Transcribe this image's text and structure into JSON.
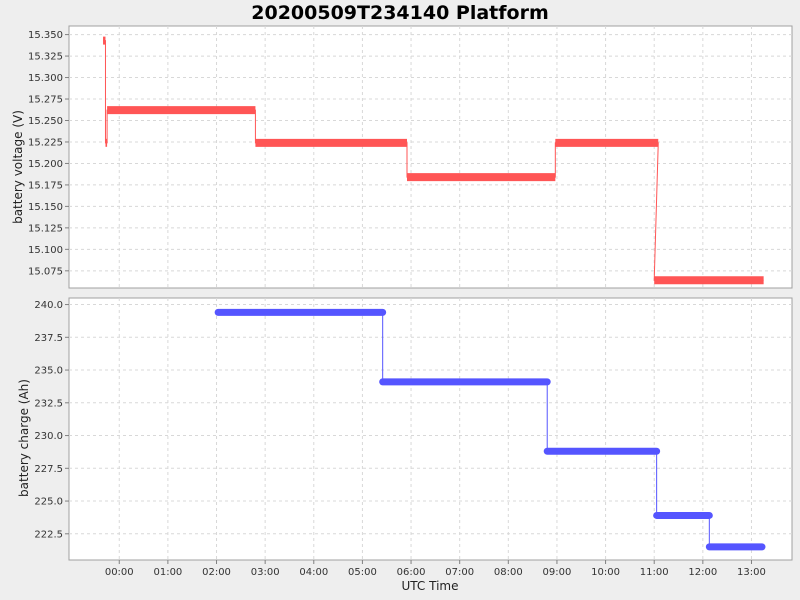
{
  "chart_data": [
    {
      "type": "line",
      "title": "20200509T234140 Platform",
      "xlabel": "UTC Time",
      "ylabel": "battery voltage (V)",
      "ylim": [
        15.055,
        15.36
      ],
      "y_ticks": [
        15.075,
        15.1,
        15.125,
        15.15,
        15.175,
        15.2,
        15.225,
        15.25,
        15.275,
        15.3,
        15.325,
        15.35
      ],
      "y_tick_labels": [
        "15.075",
        "15.100",
        "15.125",
        "15.150",
        "15.175",
        "15.200",
        "15.225",
        "15.250",
        "15.275",
        "15.300",
        "15.325",
        "15.350"
      ],
      "grid": true,
      "color": "#ff5555",
      "series": [
        {
          "segments": [
            {
              "x": [
                "23:40",
                "23:43"
              ],
              "y": [
                15.343,
                15.343
              ]
            },
            {
              "x": [
                "23:43",
                "23:45"
              ],
              "y": [
                15.224,
                15.224
              ]
            },
            {
              "x": [
                "23:45",
                "02:48"
              ],
              "y": [
                15.262,
                15.262
              ]
            },
            {
              "x": [
                "02:48",
                "05:55"
              ],
              "y": [
                15.224,
                15.224
              ]
            },
            {
              "x": [
                "05:55",
                "08:58"
              ],
              "y": [
                15.184,
                15.184
              ]
            },
            {
              "x": [
                "08:58",
                "11:05"
              ],
              "y": [
                15.224,
                15.224
              ]
            },
            {
              "x": [
                "11:00",
                "13:15"
              ],
              "y": [
                15.064,
                15.064
              ]
            }
          ]
        }
      ]
    },
    {
      "type": "line",
      "xlabel": "UTC Time",
      "ylabel": "battery charge (Ah)",
      "ylim": [
        220.5,
        240.5
      ],
      "y_ticks": [
        222.5,
        225.0,
        227.5,
        230.0,
        232.5,
        235.0,
        237.5,
        240.0
      ],
      "y_tick_labels": [
        "222.5",
        "225.0",
        "227.5",
        "230.0",
        "232.5",
        "235.0",
        "237.5",
        "240.0"
      ],
      "grid": true,
      "color": "#5555ff",
      "series": [
        {
          "segments": [
            {
              "x": [
                "02:02",
                "05:25"
              ],
              "y": [
                239.4,
                239.4
              ]
            },
            {
              "x": [
                "05:25",
                "08:48"
              ],
              "y": [
                234.1,
                234.1
              ]
            },
            {
              "x": [
                "08:48",
                "11:03"
              ],
              "y": [
                228.8,
                228.8
              ]
            },
            {
              "x": [
                "11:03",
                "12:08"
              ],
              "y": [
                223.9,
                223.9
              ]
            },
            {
              "x": [
                "12:08",
                "13:13"
              ],
              "y": [
                221.5,
                221.5
              ]
            }
          ]
        }
      ]
    }
  ],
  "x_axis": {
    "ticks": [
      "00:00",
      "01:00",
      "02:00",
      "03:00",
      "04:00",
      "05:00",
      "06:00",
      "07:00",
      "08:00",
      "09:00",
      "10:00",
      "11:00",
      "12:00",
      "13:00"
    ],
    "range": [
      "22:58",
      "13:50"
    ]
  }
}
